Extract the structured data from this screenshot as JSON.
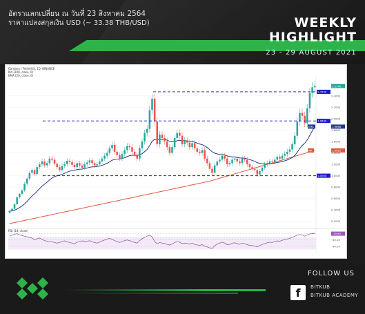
{
  "header": {
    "rate_line1": "อัตราแลกเปลี่ยน ณ วันที่ 23 สิงหาคม 2564",
    "rate_line2": "ราคาแปลงสกุลเงิน USD (~ 33.38 THB/USD)",
    "weekly": "WEEKLY",
    "highlight": "HIGHLIGHT",
    "date_range": "23 - 29 AUGUST  2021"
  },
  "footer": {
    "follow_us": "FOLLOW US",
    "social_1": "BITKUB",
    "social_2": "BITKUB ACADEMY",
    "facebook_glyph": "f"
  },
  "colors": {
    "brand_green": "#2db34a",
    "candle_up": "#26a69a",
    "candle_down": "#ef5350",
    "ma200": "#e0573f",
    "ema20": "#1f3a8a",
    "dash_line": "#1a1acc",
    "rsi": "#9b59b6"
  },
  "chart_data": {
    "type": "candlestick",
    "title": "Cardano / TetherUS, 1D, BINANCE",
    "indicators": [
      "MA (200, close, 0)",
      "EMA (20, close, 0)"
    ],
    "price_axis_ticks": [
      "2.4000",
      "2.2000",
      "2.0000",
      "1.8000",
      "1.6000",
      "1.4000",
      "1.2000",
      "1.0000",
      "0.8000",
      "0.6000",
      "0.4000",
      "0.2000"
    ],
    "ylim": [
      0.1,
      2.7
    ],
    "horizontal_levels": [
      {
        "value": 2.47,
        "label": "2.4700"
      },
      {
        "value": 1.96,
        "label": "1.9600"
      },
      {
        "value": 1.0,
        "label": "1.0000"
      }
    ],
    "last_price_label": "2.5740",
    "ema_label": "1.9868",
    "ema_tag": "EMA",
    "ma_label": "1.3025",
    "ma_tag": "MA",
    "closes": [
      0.38,
      0.42,
      0.5,
      0.62,
      0.68,
      0.74,
      0.86,
      0.95,
      1.05,
      1.1,
      1.03,
      1.15,
      1.2,
      1.25,
      1.18,
      1.22,
      1.3,
      1.28,
      1.21,
      1.15,
      1.1,
      1.17,
      1.2,
      1.26,
      1.24,
      1.19,
      1.15,
      1.22,
      1.18,
      1.14,
      1.2,
      1.23,
      1.27,
      1.22,
      1.18,
      1.2,
      1.25,
      1.3,
      1.35,
      1.4,
      1.48,
      1.54,
      1.42,
      1.36,
      1.3,
      1.38,
      1.45,
      1.52,
      1.5,
      1.42,
      1.37,
      1.3,
      1.48,
      1.6,
      1.75,
      1.82,
      2.15,
      2.35,
      1.95,
      1.55,
      1.72,
      1.66,
      1.6,
      1.5,
      1.4,
      1.5,
      1.66,
      1.75,
      1.7,
      1.55,
      1.62,
      1.58,
      1.5,
      1.57,
      1.48,
      1.42,
      1.4,
      1.45,
      1.3,
      1.22,
      1.12,
      1.05,
      1.18,
      1.25,
      1.28,
      1.35,
      1.3,
      1.2,
      1.22,
      1.28,
      1.3,
      1.25,
      1.22,
      1.3,
      1.28,
      1.2,
      1.15,
      1.12,
      1.1,
      1.02,
      1.08,
      1.14,
      1.2,
      1.22,
      1.25,
      1.24,
      1.28,
      1.33,
      1.3,
      1.35,
      1.38,
      1.42,
      1.46,
      1.55,
      1.7,
      1.95,
      2.1,
      2.05,
      1.92,
      2.18,
      2.45,
      2.55,
      2.57
    ],
    "rsi": {
      "label": "RSI (14, close)",
      "value_label": "79.99",
      "levels": [
        "80.00",
        "60.00",
        "40.00"
      ],
      "values": [
        72,
        75,
        78,
        80,
        76,
        74,
        72,
        70,
        68,
        66,
        60,
        64,
        66,
        62,
        58,
        56,
        55,
        54,
        52,
        50,
        52,
        55,
        57,
        54,
        52,
        50,
        48,
        53,
        55,
        57,
        56,
        55,
        58,
        54,
        52,
        50,
        53,
        57,
        60,
        63,
        65,
        62,
        58,
        55,
        52,
        55,
        58,
        60,
        58,
        55,
        52,
        50,
        58,
        64,
        68,
        72,
        75,
        70,
        55,
        48,
        52,
        50,
        49,
        46,
        44,
        47,
        52,
        55,
        53,
        48,
        50,
        49,
        47,
        50,
        46,
        44,
        43,
        45,
        40,
        38,
        35,
        33,
        42,
        47,
        50,
        53,
        50,
        45,
        46,
        50,
        51,
        48,
        46,
        50,
        48,
        45,
        43,
        42,
        41,
        38,
        42,
        46,
        49,
        51,
        53,
        52,
        55,
        57,
        56,
        59,
        61,
        63,
        65,
        68,
        72,
        75,
        77,
        76,
        72,
        76,
        79,
        80,
        80
      ]
    }
  }
}
